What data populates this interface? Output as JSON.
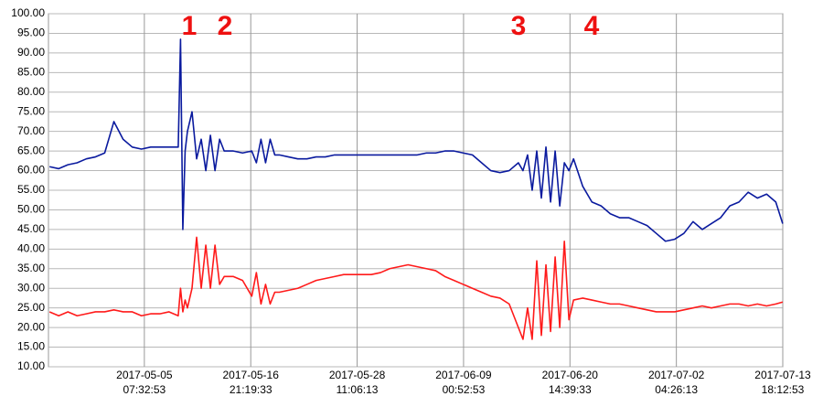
{
  "chart_data": {
    "type": "line",
    "x": [
      "2017-04-25",
      "2017-04-26",
      "2017-04-27",
      "2017-04-28",
      "2017-04-29",
      "2017-04-30",
      "2017-05-01",
      "2017-05-02",
      "2017-05-03",
      "2017-05-04",
      "2017-05-05",
      "2017-05-06",
      "2017-05-07",
      "2017-05-08",
      "2017-05-09 00:00",
      "2017-05-09 06:00",
      "2017-05-09 12:00",
      "2017-05-09 18:00",
      "2017-05-10 00:00",
      "2017-05-10 12:00",
      "2017-05-11 00:00",
      "2017-05-11 12:00",
      "2017-05-12 00:00",
      "2017-05-12 12:00",
      "2017-05-13 00:00",
      "2017-05-13 12:00",
      "2017-05-14",
      "2017-05-15",
      "2017-05-16",
      "2017-05-17 00:00",
      "2017-05-17 12:00",
      "2017-05-18 00:00",
      "2017-05-18 12:00",
      "2017-05-19 00:00",
      "2017-05-19 12:00",
      "2017-05-20",
      "2017-05-21",
      "2017-05-22",
      "2017-05-23",
      "2017-05-24",
      "2017-05-25",
      "2017-05-26",
      "2017-05-27",
      "2017-05-28",
      "2017-05-29",
      "2017-05-30",
      "2017-05-31",
      "2017-06-01",
      "2017-06-02",
      "2017-06-03",
      "2017-06-04",
      "2017-06-05",
      "2017-06-06",
      "2017-06-07",
      "2017-06-08",
      "2017-06-09",
      "2017-06-10",
      "2017-06-11",
      "2017-06-12",
      "2017-06-13",
      "2017-06-14",
      "2017-06-15 00:00",
      "2017-06-15 12:00",
      "2017-06-16 00:00",
      "2017-06-16 12:00",
      "2017-06-17 00:00",
      "2017-06-17 12:00",
      "2017-06-18 00:00",
      "2017-06-18 12:00",
      "2017-06-19 00:00",
      "2017-06-19 12:00",
      "2017-06-20 00:00",
      "2017-06-20 12:00",
      "2017-06-21",
      "2017-06-22",
      "2017-06-23",
      "2017-06-24",
      "2017-06-25",
      "2017-06-26",
      "2017-06-27",
      "2017-06-28",
      "2017-06-29",
      "2017-06-30",
      "2017-07-01",
      "2017-07-02",
      "2017-07-03",
      "2017-07-04",
      "2017-07-05",
      "2017-07-06",
      "2017-07-07",
      "2017-07-08",
      "2017-07-09",
      "2017-07-10",
      "2017-07-11",
      "2017-07-12",
      "2017-07-13 00:00",
      "2017-07-13 18:00"
    ],
    "series": [
      {
        "color": "#0a1a9e",
        "values": [
          61,
          60.5,
          61.5,
          62,
          63,
          63.5,
          64.5,
          72.5,
          68,
          66,
          65.5,
          66,
          66,
          66,
          66,
          93.5,
          45,
          65,
          70,
          75,
          63,
          68,
          60,
          69,
          60,
          68,
          65,
          65,
          64.5,
          65,
          62,
          68,
          62,
          68,
          64,
          64,
          63.5,
          63,
          63,
          63.5,
          63.5,
          64,
          64,
          64,
          64,
          64,
          64,
          64,
          64,
          64,
          64,
          64.5,
          64.5,
          65,
          65,
          64.5,
          64,
          62,
          60,
          59.5,
          60,
          62,
          60,
          64,
          55,
          65,
          53,
          66,
          52,
          65,
          51,
          62,
          60,
          63,
          56,
          52,
          51,
          49,
          48,
          48,
          47,
          46,
          44,
          42,
          42.5,
          44,
          47,
          45,
          46.5,
          48,
          51,
          52,
          54.5,
          53,
          54,
          52,
          46.5
        ]
      },
      {
        "color": "#ff1a1a",
        "values": [
          24,
          23,
          24,
          23,
          23.5,
          24,
          24,
          24.5,
          24,
          24,
          23,
          23.5,
          23.5,
          24,
          23,
          30,
          24,
          27,
          25,
          30,
          43,
          30,
          41,
          30,
          41,
          31,
          33,
          33,
          32,
          28,
          34,
          26,
          31,
          26,
          29,
          29,
          29.5,
          30,
          31,
          32,
          32.5,
          33,
          33.5,
          33.5,
          33.5,
          33.5,
          34,
          35,
          35.5,
          36,
          35.5,
          35,
          34.5,
          33,
          32,
          31,
          30,
          29,
          28,
          27.5,
          26,
          20,
          17,
          25,
          17,
          37,
          18,
          36,
          19,
          38,
          20,
          42,
          22,
          27,
          27.5,
          27,
          26.5,
          26,
          26,
          25.5,
          25,
          24.5,
          24,
          24,
          24,
          24.5,
          25,
          25.5,
          25,
          25.5,
          26,
          26,
          25.5,
          26,
          25.5,
          26,
          26.5
        ]
      }
    ],
    "xlim": [
      "2017-04-24 21:13",
      "2017-07-13 18:12:53"
    ],
    "xticks": [
      {
        "value": "2017-05-05 07:32:53",
        "label": "2017-05-05\n07:32:53"
      },
      {
        "value": "2017-05-16 21:19:33",
        "label": "2017-05-16\n21:19:33"
      },
      {
        "value": "2017-05-28 11:06:13",
        "label": "2017-05-28\n11:06:13"
      },
      {
        "value": "2017-06-09 00:52:53",
        "label": "2017-06-09\n00:52:53"
      },
      {
        "value": "2017-06-20 14:39:33",
        "label": "2017-06-20\n14:39:33"
      },
      {
        "value": "2017-07-02 04:26:13",
        "label": "2017-07-02\n04:26:13"
      },
      {
        "value": "2017-07-13 18:12:53",
        "label": "2017-07-13\n18:12:53"
      }
    ],
    "ylim": [
      10,
      100
    ],
    "yticks": [
      {
        "value": 10,
        "label": "10.00"
      },
      {
        "value": 15,
        "label": "15.00"
      },
      {
        "value": 20,
        "label": "20.00"
      },
      {
        "value": 25,
        "label": "25.00"
      },
      {
        "value": 30,
        "label": "30.00"
      },
      {
        "value": 35,
        "label": "35.00"
      },
      {
        "value": 40,
        "label": "40.00"
      },
      {
        "value": 45,
        "label": "45.00"
      },
      {
        "value": 50,
        "label": "50.00"
      },
      {
        "value": 55,
        "label": "55.00"
      },
      {
        "value": 60,
        "label": "60.00"
      },
      {
        "value": 65,
        "label": "65.00"
      },
      {
        "value": 70,
        "label": "70.00"
      },
      {
        "value": 75,
        "label": "75.00"
      },
      {
        "value": 80,
        "label": "80.00"
      },
      {
        "value": 85,
        "label": "85.00"
      },
      {
        "value": 90,
        "label": "90.00"
      },
      {
        "value": 95,
        "label": "95.00"
      },
      {
        "value": 100,
        "label": "100.00"
      }
    ],
    "grid": true,
    "annotations": [
      "1",
      "2",
      "3",
      "4"
    ]
  }
}
